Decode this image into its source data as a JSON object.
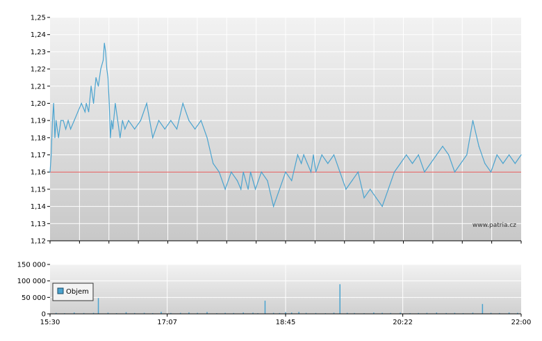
{
  "chart_data": [
    {
      "type": "line",
      "y_ticks": [
        "1,12",
        "1,13",
        "1,14",
        "1,15",
        "1,16",
        "1,17",
        "1,18",
        "1,19",
        "1,20",
        "1,21",
        "1,22",
        "1,23",
        "1,24",
        "1,25"
      ],
      "ylim": [
        1.12,
        1.25
      ],
      "xlim": [
        "15:30",
        "22:00"
      ],
      "reference_line": {
        "value": 1.16,
        "color": "#e05050"
      },
      "grid": true,
      "line_color": "#4aa3cf",
      "series": [
        {
          "x": [
            "15:30",
            "15:31",
            "15:32",
            "15:33",
            "15:34",
            "15:35",
            "15:37",
            "15:39",
            "15:41",
            "15:43",
            "15:45",
            "15:47",
            "15:50",
            "15:53",
            "15:56",
            "15:59",
            "16:00",
            "16:02",
            "16:04",
            "16:06",
            "16:08",
            "16:10",
            "16:12",
            "16:14",
            "16:15",
            "16:16",
            "16:17",
            "16:18",
            "16:19",
            "16:20",
            "16:21",
            "16:22",
            "16:24",
            "16:26",
            "16:28",
            "16:30",
            "16:32",
            "16:35",
            "16:40",
            "16:45",
            "16:50",
            "16:55",
            "17:00",
            "17:05",
            "17:10",
            "17:15",
            "17:20",
            "17:25",
            "17:30",
            "17:35",
            "17:40",
            "17:45",
            "17:50",
            "17:55",
            "18:00",
            "18:05",
            "18:08",
            "18:10",
            "18:12",
            "18:14",
            "18:16",
            "18:18",
            "18:20",
            "18:25",
            "18:30",
            "18:35",
            "18:40",
            "18:45",
            "18:50",
            "18:55",
            "18:58",
            "19:00",
            "19:03",
            "19:06",
            "19:08",
            "19:10",
            "19:15",
            "19:20",
            "19:25",
            "19:30",
            "19:35",
            "19:40",
            "19:45",
            "19:50",
            "19:55",
            "20:00",
            "20:05",
            "20:10",
            "20:15",
            "20:20",
            "20:25",
            "20:30",
            "20:35",
            "20:40",
            "20:45",
            "20:50",
            "20:55",
            "21:00",
            "21:05",
            "21:10",
            "21:15",
            "21:20",
            "21:25",
            "21:30",
            "21:35",
            "21:40",
            "21:45",
            "21:50",
            "21:55",
            "22:00"
          ],
          "values": [
            1.16,
            1.17,
            1.19,
            1.2,
            1.18,
            1.19,
            1.18,
            1.19,
            1.19,
            1.185,
            1.19,
            1.185,
            1.19,
            1.195,
            1.2,
            1.195,
            1.2,
            1.195,
            1.21,
            1.2,
            1.215,
            1.21,
            1.22,
            1.225,
            1.235,
            1.23,
            1.22,
            1.215,
            1.2,
            1.18,
            1.19,
            1.185,
            1.2,
            1.19,
            1.18,
            1.19,
            1.185,
            1.19,
            1.185,
            1.19,
            1.2,
            1.18,
            1.19,
            1.185,
            1.19,
            1.185,
            1.2,
            1.19,
            1.185,
            1.19,
            1.18,
            1.165,
            1.16,
            1.15,
            1.16,
            1.155,
            1.15,
            1.16,
            1.155,
            1.15,
            1.16,
            1.155,
            1.15,
            1.16,
            1.155,
            1.14,
            1.15,
            1.16,
            1.155,
            1.17,
            1.165,
            1.17,
            1.165,
            1.16,
            1.17,
            1.16,
            1.17,
            1.165,
            1.17,
            1.16,
            1.15,
            1.155,
            1.16,
            1.145,
            1.15,
            1.145,
            1.14,
            1.15,
            1.16,
            1.165,
            1.17,
            1.165,
            1.17,
            1.16,
            1.165,
            1.17,
            1.175,
            1.17,
            1.16,
            1.165,
            1.17,
            1.19,
            1.175,
            1.165,
            1.16,
            1.17,
            1.165,
            1.17,
            1.165,
            1.17
          ]
        }
      ]
    },
    {
      "type": "bar",
      "y_ticks": [
        "0",
        "50 000",
        "100 000",
        "150 000"
      ],
      "ylim": [
        0,
        150000
      ],
      "grid": true,
      "legend": {
        "label": "Objem",
        "placement": "top-left"
      },
      "bar_color": "#4aa3cf",
      "x_ticks": [
        "15:30",
        "17:07",
        "18:45",
        "20:22",
        "22:00"
      ],
      "xlim": [
        "15:30",
        "22:00"
      ],
      "series": [
        {
          "name": "Objem",
          "x": [
            "15:35",
            "15:42",
            "15:50",
            "15:58",
            "16:06",
            "16:10",
            "16:18",
            "16:25",
            "16:33",
            "16:40",
            "16:48",
            "16:55",
            "17:02",
            "17:10",
            "17:18",
            "17:25",
            "17:32",
            "17:40",
            "17:48",
            "17:55",
            "18:02",
            "18:10",
            "18:18",
            "18:22",
            "18:28",
            "18:35",
            "18:40",
            "18:45",
            "18:50",
            "18:56",
            "19:02",
            "19:10",
            "19:18",
            "19:25",
            "19:30",
            "19:36",
            "19:42",
            "19:50",
            "19:58",
            "20:05",
            "20:12",
            "20:20",
            "20:28",
            "20:35",
            "20:42",
            "20:50",
            "20:58",
            "21:05",
            "21:12",
            "21:20",
            "21:28",
            "21:35",
            "21:42",
            "21:50",
            "21:57"
          ],
          "values": [
            3000,
            2000,
            4000,
            2500,
            3000,
            48000,
            3500,
            2000,
            5000,
            2500,
            3000,
            2000,
            6000,
            2500,
            3000,
            4500,
            3000,
            5500,
            2000,
            3000,
            2500,
            4000,
            3500,
            2000,
            40000,
            3000,
            2500,
            5000,
            4000,
            6000,
            3000,
            2500,
            2000,
            3500,
            90000,
            3000,
            2500,
            2000,
            4000,
            3000,
            2500,
            3500,
            2000,
            2500,
            3000,
            4000,
            2500,
            3000,
            2000,
            3500,
            30000,
            3000,
            2500,
            4000,
            3000
          ]
        }
      ],
      "watermark": "www.patria.cz"
    }
  ]
}
